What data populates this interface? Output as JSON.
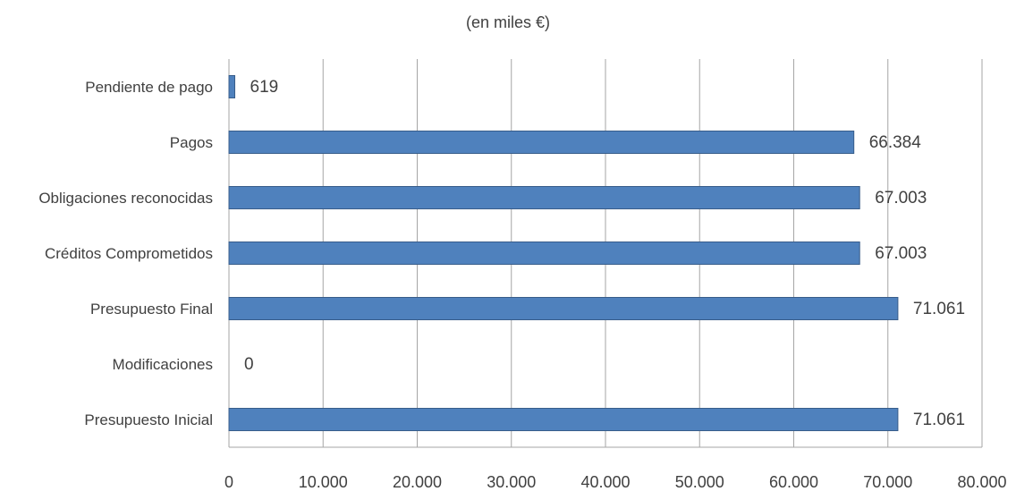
{
  "chart_data": {
    "type": "bar",
    "orientation": "horizontal",
    "subtitle": "(en miles €)",
    "categories": [
      "Pendiente de pago",
      "Pagos",
      "Obligaciones reconocidas",
      "Créditos Comprometidos",
      "Presupuesto Final",
      "Modificaciones",
      "Presupuesto Inicial"
    ],
    "values": [
      619,
      66384,
      67003,
      67003,
      71061,
      0,
      71061
    ],
    "data_labels": [
      "619",
      "66.384",
      "67.003",
      "67.003",
      "71.061",
      "0",
      "71.061"
    ],
    "x_ticks": [
      "0",
      "10.000",
      "20.000",
      "30.000",
      "40.000",
      "50.000",
      "60.000",
      "70.000",
      "80.000"
    ],
    "xlim": [
      0,
      80000
    ],
    "grid": true,
    "legend": "none",
    "bar_color": "#4f81bd",
    "bar_stroke": "#385d8a",
    "grid_color": "#a6a6a6",
    "text_color": "#404040"
  }
}
